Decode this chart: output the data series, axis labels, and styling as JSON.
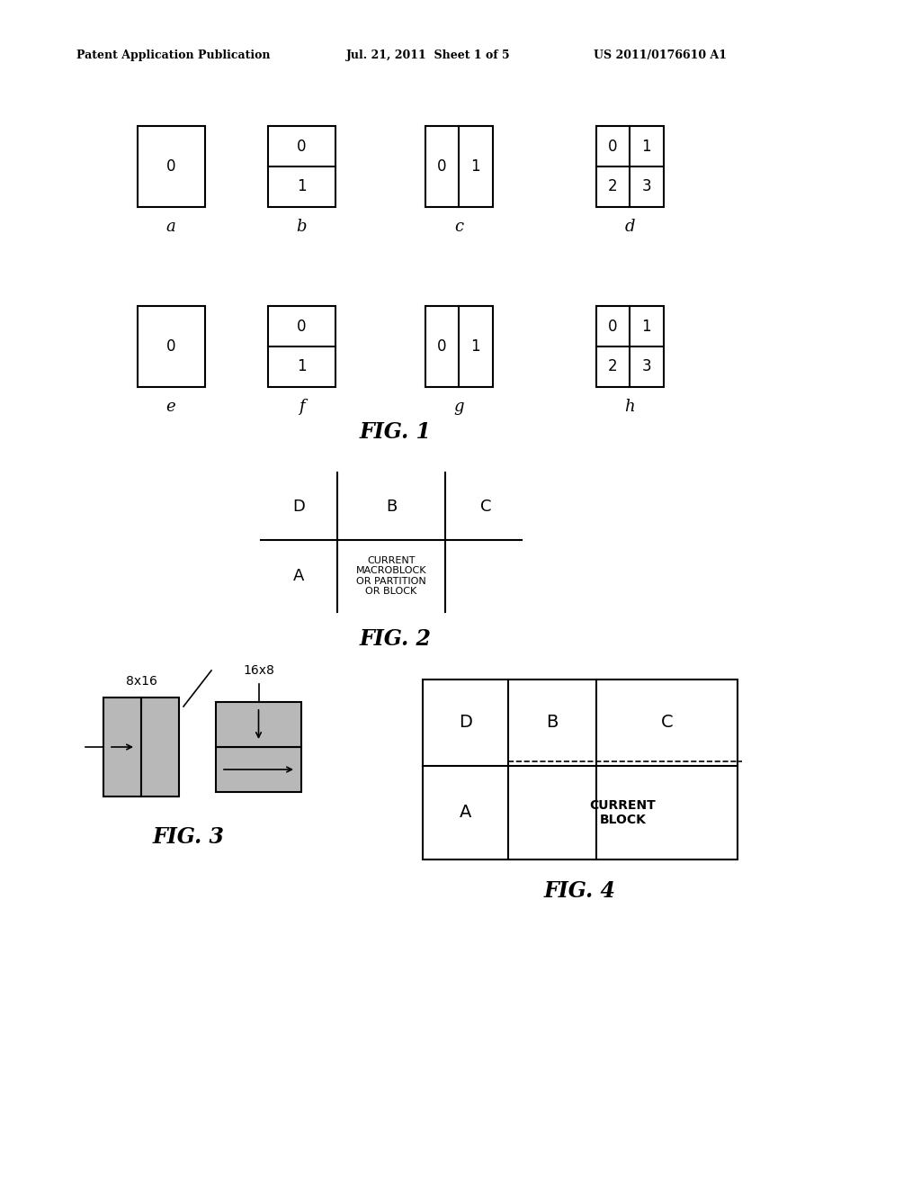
{
  "bg_color": "#ffffff",
  "header_left": "Patent Application Publication",
  "header_mid": "Jul. 21, 2011  Sheet 1 of 5",
  "header_right": "US 2011/0176610 A1",
  "fig1_title": "FIG. 1",
  "fig2_title": "FIG. 2",
  "fig3_title": "FIG. 3",
  "fig4_title": "FIG. 4",
  "row1_labels": [
    "a",
    "b",
    "c",
    "d"
  ],
  "row2_labels": [
    "e",
    "f",
    "g",
    "h"
  ],
  "fig2_labels": [
    "D",
    "B",
    "C",
    "A",
    "CURRENT\nMACROBLOCK\nOR PARTITION\nOR BLOCK"
  ],
  "fig3_labels": [
    "8x16",
    "16x8"
  ],
  "fig4_labels": [
    "D",
    "B",
    "C",
    "A",
    "CURRENT\nBLOCK"
  ],
  "gray": "#b8b8b8"
}
